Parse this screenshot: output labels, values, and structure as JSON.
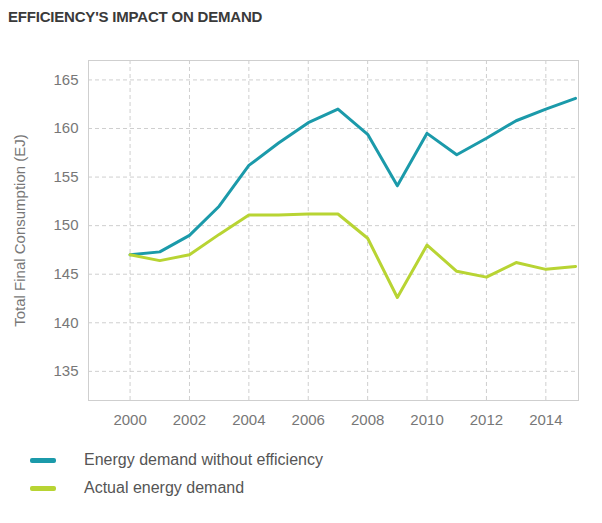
{
  "chart_data": {
    "type": "line",
    "title": "EFFICIENCY'S IMPACT ON DEMAND",
    "y_label": "Total Final Consumption (EJ)",
    "x": [
      2000,
      2001,
      2002,
      2003,
      2004,
      2005,
      2006,
      2007,
      2008,
      2009,
      2010,
      2011,
      2012,
      2013,
      2014,
      2015
    ],
    "series": [
      {
        "name": "Energy demand without efficiency",
        "color": "#1b9aaa",
        "values": [
          147.0,
          147.3,
          149.0,
          152.0,
          156.2,
          158.5,
          160.6,
          162.0,
          159.4,
          154.1,
          159.5,
          157.3,
          159.0,
          160.8,
          162.0,
          163.1
        ]
      },
      {
        "name": "Actual energy demand",
        "color": "#b8d433",
        "values": [
          147.0,
          146.4,
          147.0,
          149.1,
          151.1,
          151.1,
          151.2,
          151.2,
          148.7,
          142.6,
          148.0,
          145.3,
          144.7,
          146.2,
          145.5,
          145.8
        ]
      }
    ],
    "xlim": [
      1998.6,
      2015.1
    ],
    "xticks": [
      2000,
      2002,
      2004,
      2006,
      2008,
      2010,
      2012,
      2014
    ],
    "ylim": [
      132,
      167
    ],
    "yticks": [
      135,
      140,
      145,
      150,
      155,
      160,
      165
    ],
    "grid": true,
    "legend": "bottom-left"
  }
}
